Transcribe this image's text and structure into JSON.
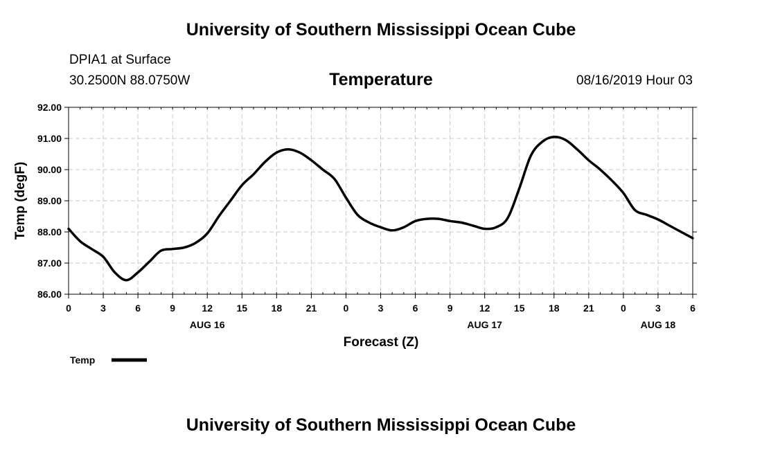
{
  "page": {
    "top_title": "University of Southern Mississippi Ocean Cube",
    "bottom_title": "University of Southern Mississippi Ocean Cube",
    "station": "DPIA1 at Surface",
    "coords": "30.2500N 88.0750W",
    "datetime": "08/16/2019 Hour 03"
  },
  "chart_data": {
    "type": "line",
    "title": "Temperature",
    "xlabel": "Forecast (Z)",
    "ylabel": "Temp (degF)",
    "ylim": [
      86.0,
      92.0
    ],
    "xlim": [
      0,
      54
    ],
    "y_ticks": [
      "86.00",
      "87.00",
      "88.00",
      "89.00",
      "90.00",
      "91.00",
      "92.00"
    ],
    "x_ticks": [
      "0",
      "3",
      "6",
      "9",
      "12",
      "15",
      "18",
      "21",
      "0",
      "3",
      "6",
      "9",
      "12",
      "15",
      "18",
      "21",
      "0",
      "3",
      "6"
    ],
    "date_labels": [
      {
        "label": "AUG 16",
        "at_hour": 12
      },
      {
        "label": "AUG 17",
        "at_hour": 36
      },
      {
        "label": "AUG 18",
        "at_hour": 51
      }
    ],
    "grid": true,
    "legend": [
      {
        "name": "Temp",
        "color": "#000000"
      }
    ],
    "series": [
      {
        "name": "Temp",
        "color": "#000000",
        "x": [
          0,
          1,
          2,
          3,
          4,
          5,
          6,
          7,
          8,
          9,
          10,
          11,
          12,
          13,
          14,
          15,
          16,
          17,
          18,
          19,
          20,
          21,
          22,
          23,
          24,
          25,
          26,
          27,
          28,
          29,
          30,
          31,
          32,
          33,
          34,
          35,
          36,
          37,
          38,
          39,
          40,
          41,
          42,
          43,
          44,
          45,
          46,
          47,
          48,
          49,
          50,
          51,
          52,
          53,
          54
        ],
        "values": [
          88.1,
          87.7,
          87.45,
          87.2,
          86.7,
          86.45,
          86.7,
          87.05,
          87.4,
          87.45,
          87.5,
          87.65,
          87.95,
          88.5,
          89.0,
          89.5,
          89.85,
          90.25,
          90.55,
          90.65,
          90.55,
          90.3,
          90.0,
          89.7,
          89.1,
          88.55,
          88.3,
          88.15,
          88.05,
          88.15,
          88.35,
          88.42,
          88.42,
          88.35,
          88.3,
          88.2,
          88.1,
          88.15,
          88.45,
          89.4,
          90.45,
          90.9,
          91.05,
          90.95,
          90.65,
          90.3,
          90.0,
          89.65,
          89.25,
          88.7,
          88.55,
          88.4,
          88.2,
          88.0,
          87.8
        ]
      }
    ]
  }
}
